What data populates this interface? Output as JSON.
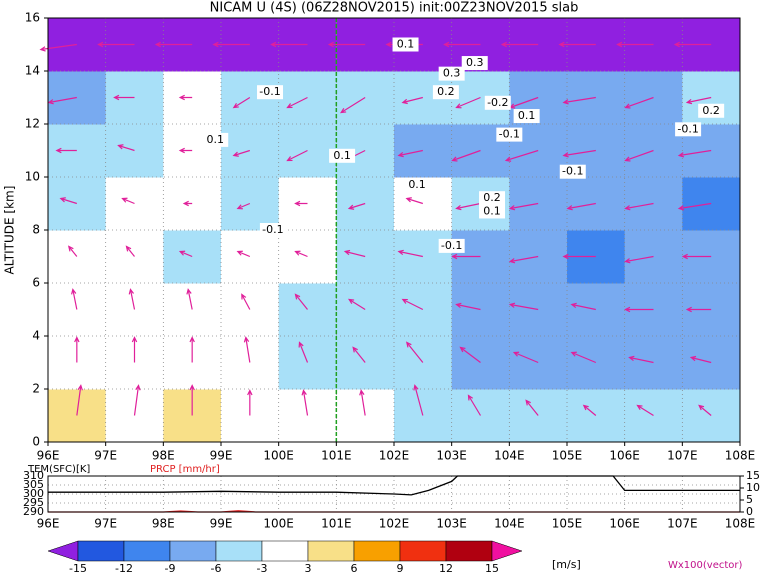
{
  "chart_data": [
    {
      "type": "section",
      "title": "NICAM U (4S) (06Z28NOV2015) init:00Z23NOV2015 slab",
      "y_label": "ALTITUDE [km]",
      "xlim": [
        96,
        108
      ],
      "ylim": [
        0,
        16
      ],
      "xticks": [
        {
          "value": 96,
          "label": "96E"
        },
        {
          "value": 97,
          "label": "97E"
        },
        {
          "value": 98,
          "label": "98E"
        },
        {
          "value": 99,
          "label": "99E"
        },
        {
          "value": 100,
          "label": "100E"
        },
        {
          "value": 101,
          "label": "101E"
        },
        {
          "value": 102,
          "label": "102E"
        },
        {
          "value": 103,
          "label": "103E"
        },
        {
          "value": 104,
          "label": "104E"
        },
        {
          "value": 105,
          "label": "105E"
        },
        {
          "value": 106,
          "label": "106E"
        },
        {
          "value": 107,
          "label": "107E"
        },
        {
          "value": 108,
          "label": "108E"
        }
      ],
      "yticks": [
        0,
        2,
        4,
        6,
        8,
        10,
        12,
        14,
        16
      ],
      "grid": true,
      "reference_x": 101,
      "reference_color": "#20a020",
      "vector_color": "#e0209a",
      "x": [
        96.5,
        97.5,
        98.5,
        99.5,
        100.5,
        101.5,
        102.5,
        103.5,
        104.5,
        105.5,
        106.5,
        107.5
      ],
      "y": [
        1,
        3,
        5,
        7,
        9,
        11,
        13,
        15
      ],
      "values": [
        [
          4,
          2,
          4,
          0,
          -1,
          -2,
          -4,
          -5,
          -4,
          -5,
          -5,
          -4
        ],
        [
          -2,
          -1,
          0,
          0,
          -4,
          -5,
          -4,
          -7,
          -8,
          -7,
          -8,
          -7
        ],
        [
          0,
          -1,
          0,
          -2,
          -4,
          -4,
          -6,
          -7,
          -8,
          -7,
          -9,
          -8
        ],
        [
          -1,
          -2,
          -4,
          -3,
          -3,
          -5,
          -6,
          -7,
          -8,
          -10,
          -9,
          -8
        ],
        [
          -4,
          -2,
          -1,
          -4,
          -2,
          -5,
          -3,
          -6,
          -8,
          -7,
          -8,
          -10
        ],
        [
          -5,
          -4,
          -2,
          -4,
          -5,
          -6,
          -7,
          -8,
          -9,
          -9,
          -8,
          -9
        ],
        [
          -8,
          -5,
          -1,
          -4,
          -5,
          -6,
          -4,
          -6,
          -7,
          -9,
          -7,
          -6
        ],
        [
          -17,
          -17,
          -17,
          -17,
          -16,
          -17,
          -16,
          -17,
          -18,
          -17,
          -17,
          -16
        ]
      ],
      "u": [
        [
          1,
          1,
          0,
          0,
          -1,
          -1,
          -2,
          -3,
          -3,
          -3,
          -4,
          -3
        ],
        [
          0,
          0,
          0,
          -1,
          -2,
          -3,
          -4,
          -5,
          -6,
          -6,
          -6,
          -5
        ],
        [
          -1,
          -1,
          -1,
          -2,
          -3,
          -4,
          -5,
          -6,
          -7,
          -6,
          -7,
          -6
        ],
        [
          -2,
          -2,
          -3,
          -3,
          -3,
          -5,
          -6,
          -7,
          -7,
          -8,
          -7,
          -7
        ],
        [
          -4,
          -3,
          -2,
          -3,
          -3,
          -4,
          -4,
          -6,
          -7,
          -7,
          -7,
          -8
        ],
        [
          -5,
          -4,
          -3,
          -4,
          -5,
          -5,
          -6,
          -7,
          -8,
          -8,
          -7,
          -8
        ],
        [
          -7,
          -5,
          -3,
          -4,
          -5,
          -6,
          -5,
          -6,
          -7,
          -8,
          -7,
          -6
        ],
        [
          -9,
          -9,
          -9,
          -9,
          -9,
          -9,
          -9,
          -9,
          -9,
          -9,
          -9,
          -9
        ]
      ],
      "w": [
        [
          6,
          6,
          6,
          5,
          5,
          5,
          6,
          4,
          3,
          2,
          2,
          2
        ],
        [
          5,
          5,
          5,
          5,
          4,
          3,
          4,
          3,
          2,
          2,
          1,
          1
        ],
        [
          4,
          4,
          4,
          3,
          3,
          2,
          2,
          1,
          1,
          1,
          0,
          0
        ],
        [
          2,
          2,
          1,
          1,
          1,
          1,
          1,
          0,
          -1,
          0,
          -1,
          0
        ],
        [
          1,
          1,
          0,
          -1,
          0,
          -1,
          1,
          -1,
          -1,
          -1,
          -1,
          -1
        ],
        [
          0,
          1,
          0,
          -1,
          -2,
          -2,
          -1,
          -2,
          -2,
          -1,
          -2,
          -1
        ],
        [
          -1,
          0,
          0,
          -2,
          -2,
          -3,
          -1,
          -2,
          -2,
          -1,
          -2,
          -1
        ],
        [
          -1,
          0,
          0,
          0,
          0,
          0,
          0,
          0,
          0,
          0,
          0,
          0
        ]
      ],
      "contour_labels": [
        {
          "x": 99.85,
          "y": 13.2,
          "value": -0.1
        },
        {
          "x": 98.9,
          "y": 11.4,
          "value": 0.1
        },
        {
          "x": 102.2,
          "y": 15.0,
          "value": 0.1
        },
        {
          "x": 103.0,
          "y": 13.9,
          "value": 0.3
        },
        {
          "x": 103.4,
          "y": 14.3,
          "value": 0.3
        },
        {
          "x": 102.9,
          "y": 13.2,
          "value": 0.2
        },
        {
          "x": 103.8,
          "y": 12.8,
          "value": -0.2
        },
        {
          "x": 104.3,
          "y": 12.3,
          "value": 0.1
        },
        {
          "x": 104.0,
          "y": 11.6,
          "value": -0.1
        },
        {
          "x": 101.1,
          "y": 10.8,
          "value": 0.1
        },
        {
          "x": 102.4,
          "y": 9.7,
          "value": 0.1
        },
        {
          "x": 103.7,
          "y": 9.2,
          "value": 0.2
        },
        {
          "x": 103.7,
          "y": 8.7,
          "value": 0.1
        },
        {
          "x": 99.9,
          "y": 8.0,
          "value": -0.1
        },
        {
          "x": 103.0,
          "y": 7.4,
          "value": -0.1
        },
        {
          "x": 105.1,
          "y": 10.2,
          "value": -0.1
        },
        {
          "x": 107.1,
          "y": 11.8,
          "value": -0.1
        },
        {
          "x": 107.5,
          "y": 12.5,
          "value": 0.2
        }
      ]
    },
    {
      "type": "line",
      "xlim": [
        96,
        108
      ],
      "ylim": [
        290,
        310
      ],
      "yticks": [
        290,
        295,
        300,
        305,
        310
      ],
      "y2lim": [
        0,
        15
      ],
      "y2ticks": [
        0,
        5,
        10,
        15
      ],
      "xticks": [
        {
          "value": 96,
          "label": "96E"
        },
        {
          "value": 97,
          "label": "97E"
        },
        {
          "value": 98,
          "label": "98E"
        },
        {
          "value": 99,
          "label": "99E"
        },
        {
          "value": 100,
          "label": "100E"
        },
        {
          "value": 101,
          "label": "101E"
        },
        {
          "value": 102,
          "label": "102E"
        },
        {
          "value": 103,
          "label": "103E"
        },
        {
          "value": 104,
          "label": "104E"
        },
        {
          "value": 105,
          "label": "105E"
        },
        {
          "value": 106,
          "label": "106E"
        },
        {
          "value": 107,
          "label": "107E"
        },
        {
          "value": 108,
          "label": "108E"
        }
      ],
      "series": [
        {
          "name": "TEM(SFC)[K]",
          "color": "#000000",
          "x": [
            96,
            97,
            98,
            99,
            100,
            101,
            102,
            102.3,
            102.6,
            103,
            103.1,
            105.8,
            106,
            106.5,
            107,
            108
          ],
          "values": [
            301,
            301,
            301,
            301.5,
            301,
            301,
            300,
            299.5,
            302,
            307,
            310,
            310,
            302,
            302,
            302,
            302
          ]
        },
        {
          "name": "PRCP [mm/hr]",
          "color": "#e02020",
          "axis": "y2",
          "x": [
            96,
            97,
            98,
            98.3,
            98.6,
            99,
            99.3,
            99.6,
            100,
            101,
            102,
            104,
            106,
            108
          ],
          "values": [
            0,
            0,
            0,
            0.4,
            0,
            0,
            0.5,
            0,
            0,
            0,
            0,
            0,
            0,
            0
          ]
        }
      ]
    },
    {
      "type": "colorbar",
      "levels": [
        -15,
        -12,
        -9,
        -6,
        -3,
        3,
        6,
        9,
        12,
        15
      ],
      "colors": [
        "#9020e0",
        "#2258e0",
        "#3f85ee",
        "#78aaf0",
        "#a8e0f8",
        "#ffffff",
        "#f8e088",
        "#f8a000",
        "#f03010",
        "#b00010",
        "#f010a0"
      ],
      "unit_label": "[m/s]",
      "note": "Wx100(vector)"
    }
  ]
}
